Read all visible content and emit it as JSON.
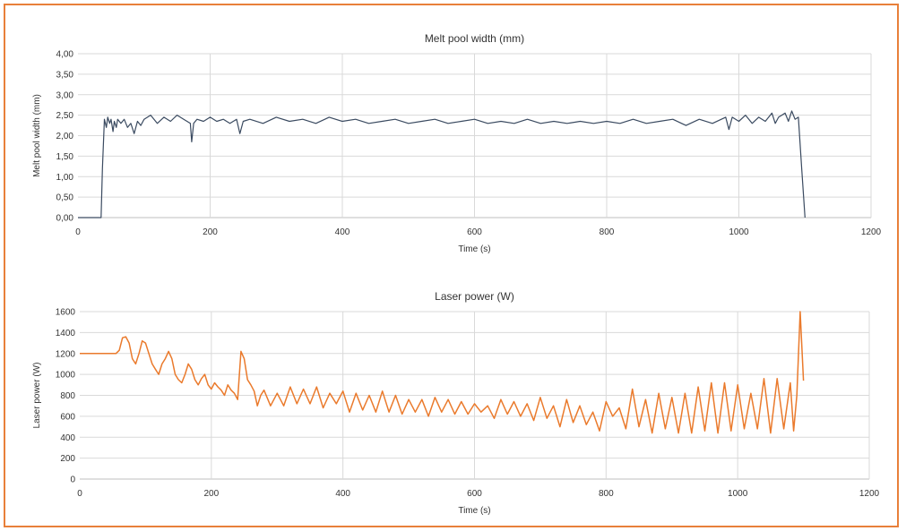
{
  "colors": {
    "border": "#e8803a",
    "width_series": "#3a4a60",
    "power_series": "#ea7a2c",
    "grid": "#d9d9d9"
  },
  "chart_data": [
    {
      "type": "line",
      "title": "Melt pool width (mm)",
      "xlabel": "Time (s)",
      "ylabel": "Melt pool width (mm)",
      "xlim": [
        0,
        1200
      ],
      "ylim": [
        0,
        4
      ],
      "x_ticks": [
        "0",
        "200",
        "400",
        "600",
        "800",
        "1000",
        "1200"
      ],
      "y_ticks": [
        "0,00",
        "0,50",
        "1,00",
        "1,50",
        "2,00",
        "2,50",
        "3,00",
        "3,50",
        "4,00"
      ],
      "grid": true,
      "legend": "none",
      "series": [
        {
          "color": "#3a4a60",
          "x": [
            0,
            35,
            37,
            40,
            43,
            45,
            48,
            50,
            53,
            55,
            58,
            60,
            65,
            70,
            75,
            80,
            85,
            90,
            95,
            100,
            110,
            120,
            130,
            140,
            150,
            160,
            170,
            172,
            175,
            180,
            190,
            200,
            210,
            220,
            230,
            240,
            245,
            250,
            260,
            280,
            300,
            320,
            340,
            360,
            380,
            400,
            420,
            440,
            460,
            480,
            500,
            520,
            540,
            560,
            580,
            600,
            620,
            640,
            660,
            680,
            700,
            720,
            740,
            760,
            780,
            800,
            820,
            840,
            860,
            880,
            900,
            920,
            940,
            960,
            980,
            985,
            990,
            1000,
            1010,
            1020,
            1030,
            1040,
            1050,
            1055,
            1060,
            1070,
            1075,
            1080,
            1085,
            1090,
            1095,
            1100
          ],
          "y": [
            0,
            0,
            1.2,
            2.4,
            2.2,
            2.45,
            2.3,
            2.4,
            2.1,
            2.35,
            2.2,
            2.4,
            2.3,
            2.4,
            2.2,
            2.3,
            2.05,
            2.35,
            2.25,
            2.4,
            2.5,
            2.3,
            2.45,
            2.35,
            2.5,
            2.4,
            2.3,
            1.85,
            2.3,
            2.4,
            2.35,
            2.45,
            2.35,
            2.4,
            2.3,
            2.4,
            2.05,
            2.35,
            2.4,
            2.3,
            2.45,
            2.35,
            2.4,
            2.3,
            2.45,
            2.35,
            2.4,
            2.3,
            2.35,
            2.4,
            2.3,
            2.35,
            2.4,
            2.3,
            2.35,
            2.4,
            2.3,
            2.35,
            2.3,
            2.4,
            2.3,
            2.35,
            2.3,
            2.35,
            2.3,
            2.35,
            2.3,
            2.4,
            2.3,
            2.35,
            2.4,
            2.25,
            2.4,
            2.3,
            2.45,
            2.15,
            2.45,
            2.35,
            2.5,
            2.3,
            2.45,
            2.35,
            2.55,
            2.3,
            2.45,
            2.55,
            2.35,
            2.6,
            2.4,
            2.45,
            1.2,
            0
          ]
        }
      ]
    },
    {
      "type": "line",
      "title": "Laser power (W)",
      "xlabel": "Time (s)",
      "ylabel": "Laser power (W)",
      "xlim": [
        0,
        1200
      ],
      "ylim": [
        0,
        1600
      ],
      "x_ticks": [
        "0",
        "200",
        "400",
        "600",
        "800",
        "1000",
        "1200"
      ],
      "y_ticks": [
        "0",
        "200",
        "400",
        "600",
        "800",
        "1000",
        "1200",
        "1400",
        "1600"
      ],
      "grid": true,
      "legend": "none",
      "series": [
        {
          "color": "#ea7a2c",
          "x": [
            0,
            55,
            60,
            65,
            70,
            75,
            80,
            85,
            90,
            95,
            100,
            105,
            110,
            115,
            120,
            125,
            130,
            135,
            140,
            145,
            150,
            155,
            160,
            165,
            170,
            175,
            180,
            185,
            190,
            195,
            200,
            205,
            210,
            215,
            220,
            225,
            230,
            235,
            240,
            245,
            250,
            255,
            260,
            265,
            270,
            275,
            280,
            290,
            300,
            310,
            320,
            330,
            340,
            350,
            360,
            370,
            380,
            390,
            400,
            410,
            420,
            430,
            440,
            450,
            460,
            470,
            480,
            490,
            500,
            510,
            520,
            530,
            540,
            550,
            560,
            570,
            580,
            590,
            600,
            610,
            620,
            630,
            640,
            650,
            660,
            670,
            680,
            690,
            700,
            710,
            720,
            730,
            740,
            750,
            760,
            770,
            780,
            790,
            800,
            810,
            820,
            830,
            840,
            850,
            860,
            870,
            880,
            890,
            900,
            910,
            920,
            930,
            940,
            950,
            960,
            970,
            980,
            990,
            1000,
            1010,
            1020,
            1030,
            1040,
            1050,
            1060,
            1070,
            1080,
            1085,
            1090,
            1095,
            1100
          ],
          "y": [
            1200,
            1200,
            1230,
            1350,
            1360,
            1300,
            1150,
            1100,
            1200,
            1320,
            1300,
            1200,
            1100,
            1050,
            1000,
            1100,
            1150,
            1220,
            1150,
            1000,
            950,
            920,
            1000,
            1100,
            1050,
            950,
            900,
            960,
            1000,
            900,
            860,
            920,
            880,
            850,
            800,
            900,
            850,
            820,
            760,
            1220,
            1150,
            950,
            900,
            840,
            700,
            800,
            850,
            700,
            820,
            700,
            880,
            720,
            860,
            720,
            880,
            680,
            820,
            720,
            840,
            640,
            820,
            660,
            800,
            640,
            840,
            640,
            800,
            620,
            760,
            640,
            760,
            600,
            780,
            640,
            760,
            620,
            740,
            620,
            720,
            640,
            700,
            580,
            760,
            620,
            740,
            600,
            720,
            560,
            780,
            580,
            700,
            500,
            760,
            540,
            700,
            520,
            640,
            460,
            740,
            600,
            680,
            480,
            860,
            500,
            760,
            440,
            820,
            480,
            780,
            440,
            820,
            440,
            880,
            460,
            920,
            440,
            920,
            460,
            900,
            480,
            820,
            480,
            960,
            440,
            960,
            480,
            920,
            460,
            800,
            1600,
            940
          ]
        }
      ]
    }
  ]
}
